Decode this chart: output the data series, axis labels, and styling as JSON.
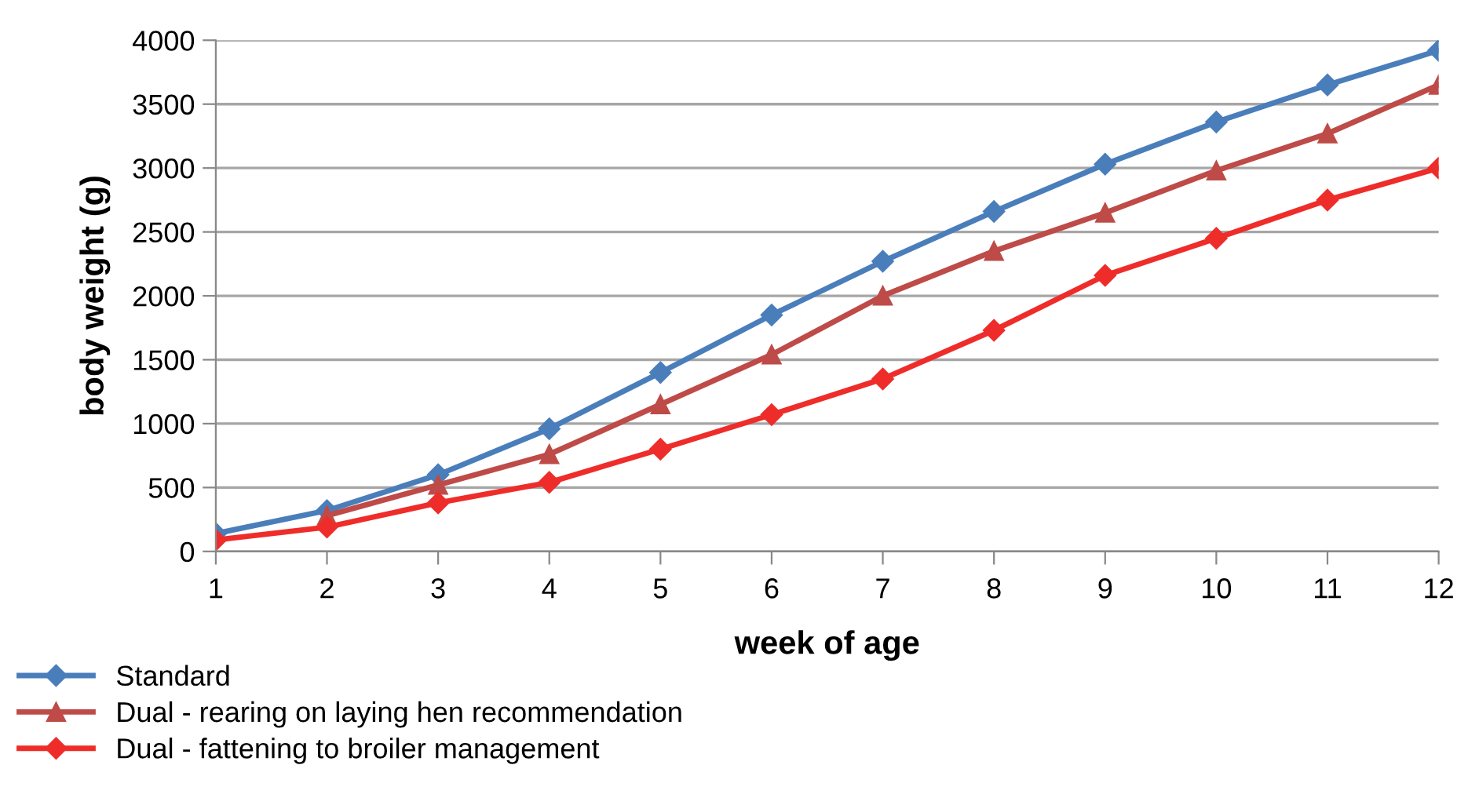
{
  "chart_data": {
    "type": "line",
    "xlabel": "week of age",
    "ylabel": "body weight (g)",
    "categories": [
      "1",
      "2",
      "3",
      "4",
      "5",
      "6",
      "7",
      "8",
      "9",
      "10",
      "11",
      "12"
    ],
    "series": [
      {
        "name": "Standard",
        "color": "#4a7ebb",
        "marker": "diamond",
        "values": [
          140,
          320,
          600,
          960,
          1400,
          1850,
          2270,
          2660,
          3030,
          3360,
          3650,
          3920
        ]
      },
      {
        "name": "Dual - rearing on laying hen recommendation",
        "color": "#be4b48",
        "marker": "triangle",
        "values": [
          null,
          280,
          520,
          760,
          1150,
          1540,
          2000,
          2350,
          2650,
          2980,
          3270,
          3650
        ]
      },
      {
        "name": "Dual - fattening to broiler management",
        "color": "#ee2d2a",
        "marker": "diamond",
        "values": [
          90,
          190,
          380,
          540,
          800,
          1070,
          1350,
          1730,
          2160,
          2450,
          2750,
          3000
        ]
      }
    ],
    "ylim": [
      0,
      4000
    ],
    "yticks": [
      0,
      500,
      1000,
      1500,
      2000,
      2500,
      3000,
      3500,
      4000
    ],
    "grid": "y",
    "legend": "bottom left",
    "line_style": "solid"
  }
}
